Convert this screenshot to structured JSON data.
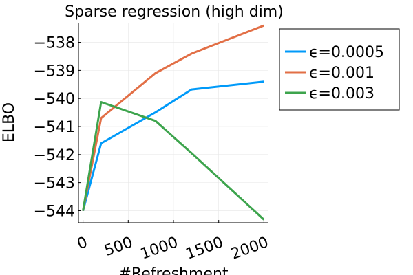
{
  "chart_data": {
    "type": "line",
    "title": "Sparse regression (high dim)",
    "xlabel": "#Refreshment",
    "ylabel": "ELBO",
    "xlim": [
      -50,
      2050
    ],
    "ylim": [
      -544.43,
      -537.3
    ],
    "xticks": [
      0,
      500,
      1000,
      1500,
      2000
    ],
    "xtick_labels": [
      "0",
      "500",
      "1000",
      "1500",
      "2000"
    ],
    "yticks": [
      -538,
      -539,
      -540,
      -541,
      -542,
      -543,
      -544
    ],
    "ytick_labels": [
      "−538",
      "−539",
      "−540",
      "−541",
      "−542",
      "−543",
      "−544"
    ],
    "grid": true,
    "legend_position": "outside-top-right",
    "series": [
      {
        "name": "ϵ=0.0005",
        "color": "#009af9",
        "x": [
          0,
          200,
          800,
          1200,
          2000
        ],
        "y": [
          -544.0,
          -541.6,
          -540.5,
          -539.68,
          -539.4
        ]
      },
      {
        "name": "ϵ=0.001",
        "color": "#e26f46",
        "x": [
          0,
          200,
          800,
          1200,
          2000
        ],
        "y": [
          -544.0,
          -540.7,
          -539.1,
          -538.4,
          -537.4
        ]
      },
      {
        "name": "ϵ=0.003",
        "color": "#3da44d",
        "x": [
          0,
          200,
          800,
          1200,
          2000
        ],
        "y": [
          -544.0,
          -540.13,
          -540.8,
          -541.95,
          -544.32
        ]
      }
    ]
  }
}
